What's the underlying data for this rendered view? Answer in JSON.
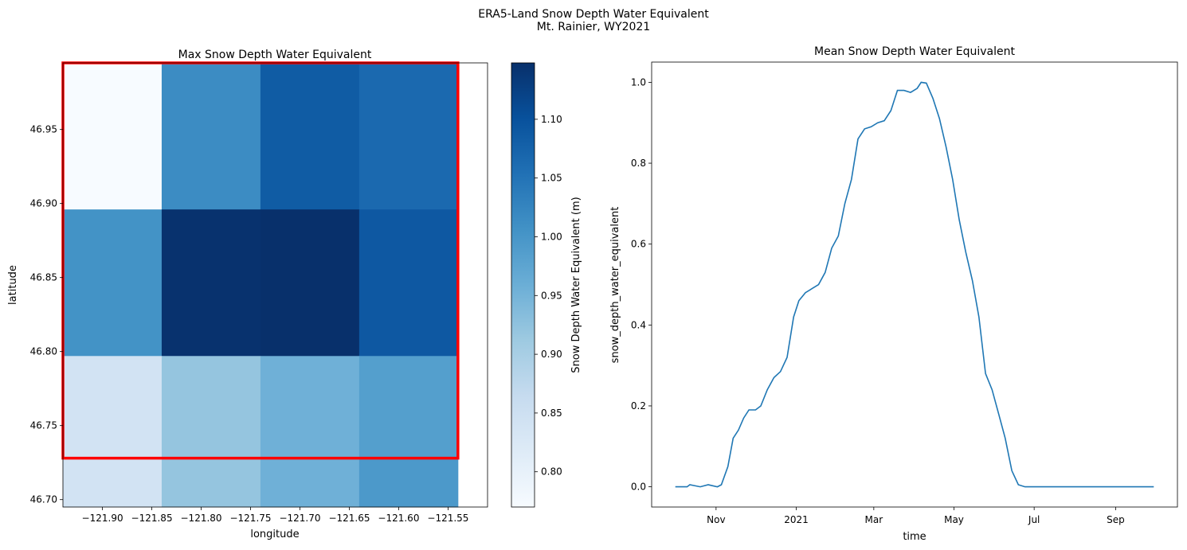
{
  "figure": {
    "suptitle_line1": "ERA5-Land Snow Depth Water Equivalent",
    "suptitle_line2": "Mt. Rainier, WY2021"
  },
  "chart_data": [
    {
      "type": "heatmap",
      "title": "Max Snow Depth Water Equivalent",
      "xlabel": "longitude",
      "ylabel": "latitude",
      "x_edges": [
        -121.94,
        -121.84,
        -121.74,
        -121.64,
        -121.54
      ],
      "y_edges": [
        46.695,
        46.728,
        46.797,
        46.896,
        46.995
      ],
      "xlim": [
        -121.94,
        -121.51
      ],
      "ylim": [
        46.695,
        46.995
      ],
      "x_ticks": [
        -121.9,
        -121.85,
        -121.8,
        -121.75,
        -121.7,
        -121.65,
        -121.6,
        -121.55
      ],
      "x_tick_labels": [
        "−121.90",
        "−121.85",
        "−121.80",
        "−121.75",
        "−121.70",
        "−121.65",
        "−121.60",
        "−121.55"
      ],
      "y_ticks": [
        46.7,
        46.75,
        46.8,
        46.85,
        46.9,
        46.95
      ],
      "y_tick_labels": [
        "46.70",
        "46.75",
        "46.80",
        "46.85",
        "46.90",
        "46.95"
      ],
      "grid_rows_top_to_bottom": [
        [
          0.77,
          1.015,
          1.085,
          1.065
        ],
        [
          1.005,
          1.145,
          1.148,
          1.09
        ],
        [
          0.84,
          0.92,
          0.955,
          0.985
        ],
        [
          0.84,
          0.92,
          0.955,
          0.995
        ]
      ],
      "colormap": "Blues",
      "cmap_stops": [
        "#f7fbff",
        "#deebf7",
        "#c6dbef",
        "#9ecae1",
        "#6baed6",
        "#4292c6",
        "#2171b5",
        "#08519c",
        "#08306b"
      ],
      "vmin": 0.77,
      "vmax": 1.148,
      "colorbar_label": "Snow Depth Water Equivalent (m)",
      "colorbar_ticks": [
        0.8,
        0.85,
        0.9,
        0.95,
        1.0,
        1.05,
        1.1
      ],
      "colorbar_tick_labels": [
        "0.80",
        "0.85",
        "0.90",
        "0.95",
        "1.00",
        "1.05",
        "1.10"
      ],
      "box": {
        "lon_min": -121.94,
        "lon_max": -121.54,
        "lat_min": 46.728,
        "lat_max": 46.995,
        "color": "#ff0000"
      }
    },
    {
      "type": "line",
      "title": "Mean Snow Depth Water Equivalent",
      "xlabel": "time",
      "ylabel": "snow_depth_water_equivalent",
      "x_range": [
        "2020-10-01",
        "2021-09-30"
      ],
      "xlim": [
        "2020-09-13",
        "2021-10-18"
      ],
      "ylim": [
        -0.05,
        1.05
      ],
      "x_ticks": [
        "2020-11-01",
        "2021-01-01",
        "2021-03-01",
        "2021-05-01",
        "2021-07-01",
        "2021-09-01"
      ],
      "x_tick_labels": [
        "Nov",
        "2021",
        "Mar",
        "May",
        "Jul",
        "Sep"
      ],
      "y_ticks": [
        0.0,
        0.2,
        0.4,
        0.6,
        0.8,
        1.0
      ],
      "y_tick_labels": [
        "0.0",
        "0.2",
        "0.4",
        "0.6",
        "0.8",
        "1.0"
      ],
      "series": [
        {
          "color": "#1f77b4",
          "x": [
            "2020-10-01",
            "2020-10-10",
            "2020-10-12",
            "2020-10-20",
            "2020-10-26",
            "2020-11-02",
            "2020-11-05",
            "2020-11-10",
            "2020-11-14",
            "2020-11-18",
            "2020-11-22",
            "2020-11-26",
            "2020-12-01",
            "2020-12-05",
            "2020-12-10",
            "2020-12-15",
            "2020-12-20",
            "2020-12-25",
            "2020-12-30",
            "2021-01-03",
            "2021-01-08",
            "2021-01-13",
            "2021-01-18",
            "2021-01-23",
            "2021-01-28",
            "2021-02-02",
            "2021-02-07",
            "2021-02-12",
            "2021-02-17",
            "2021-02-22",
            "2021-02-27",
            "2021-03-04",
            "2021-03-09",
            "2021-03-14",
            "2021-03-19",
            "2021-03-24",
            "2021-03-29",
            "2021-04-03",
            "2021-04-06",
            "2021-04-10",
            "2021-04-15",
            "2021-04-20",
            "2021-04-25",
            "2021-04-30",
            "2021-05-05",
            "2021-05-10",
            "2021-05-15",
            "2021-05-20",
            "2021-05-25",
            "2021-05-30",
            "2021-06-04",
            "2021-06-09",
            "2021-06-14",
            "2021-06-19",
            "2021-06-24",
            "2021-06-28",
            "2021-07-03",
            "2021-07-15",
            "2021-08-01",
            "2021-08-20",
            "2021-09-10",
            "2021-09-30"
          ],
          "y": [
            0.0,
            0.0,
            0.005,
            0.0,
            0.005,
            0.0,
            0.005,
            0.05,
            0.12,
            0.14,
            0.17,
            0.19,
            0.19,
            0.2,
            0.24,
            0.27,
            0.285,
            0.32,
            0.42,
            0.46,
            0.48,
            0.49,
            0.5,
            0.53,
            0.59,
            0.62,
            0.7,
            0.76,
            0.86,
            0.885,
            0.89,
            0.9,
            0.905,
            0.93,
            0.98,
            0.98,
            0.975,
            0.985,
            1.0,
            0.998,
            0.96,
            0.91,
            0.84,
            0.76,
            0.66,
            0.58,
            0.51,
            0.42,
            0.28,
            0.24,
            0.18,
            0.12,
            0.04,
            0.005,
            0.0,
            0.0,
            0.0,
            0.0,
            0.0,
            0.0,
            0.0,
            0.0
          ]
        }
      ]
    }
  ]
}
